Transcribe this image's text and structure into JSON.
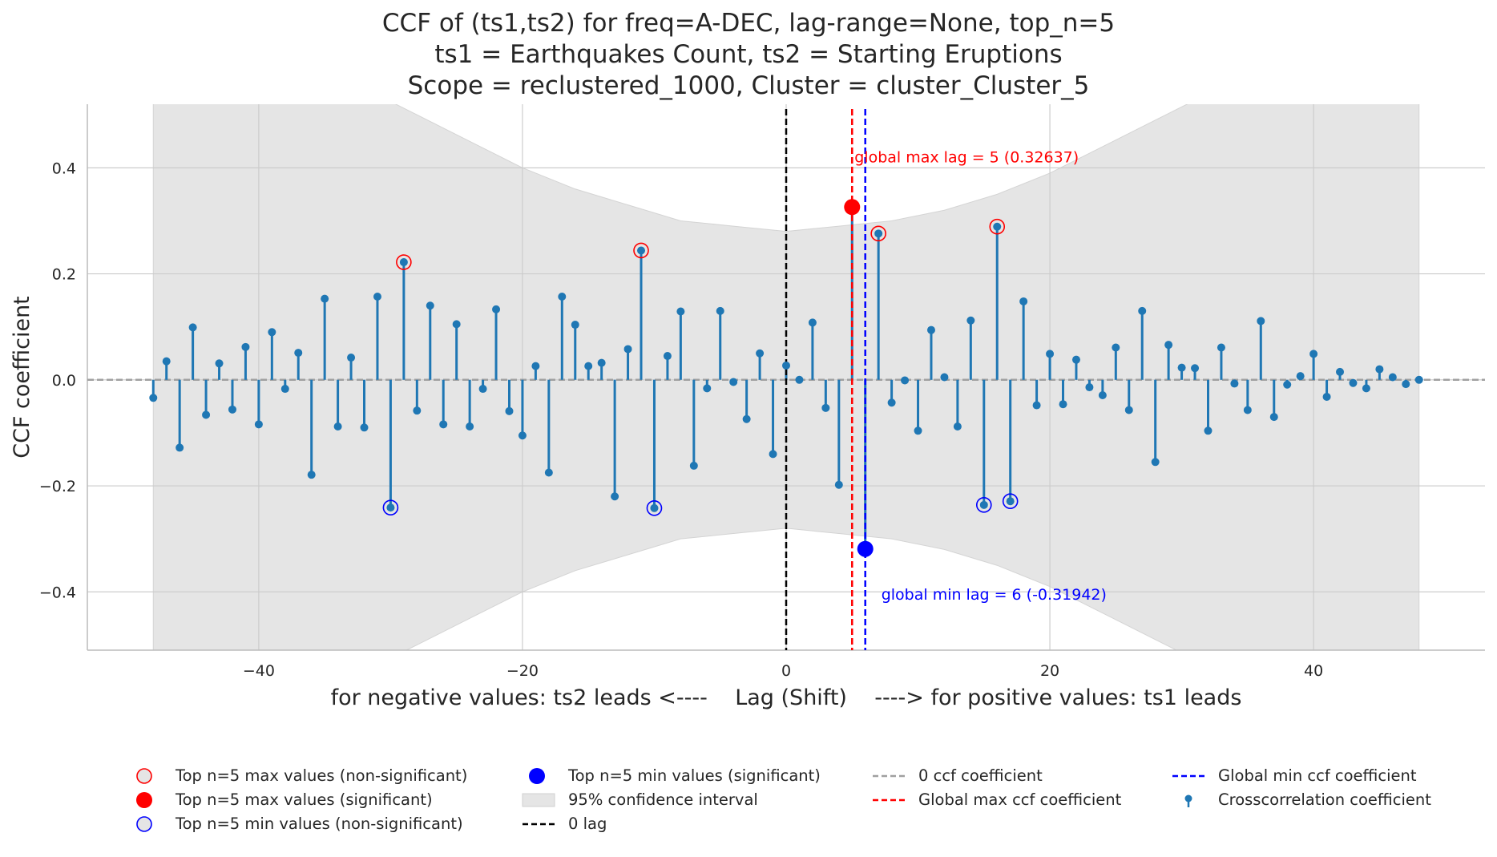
{
  "chart_data": {
    "type": "stem",
    "title_lines": [
      "CCF of (ts1,ts2) for freq=A-DEC, lag-range=None, top_n=5",
      "ts1 = Earthquakes Count, ts2 = Starting Eruptions",
      "Scope = reclustered_1000, Cluster = cluster_Cluster_5"
    ],
    "xlabel": "for negative values: ts2 leads <----    Lag (Shift)    ----> for positive values: ts1 leads",
    "ylabel": "CCF coefficient",
    "xlim": [
      -53,
      53
    ],
    "ylim": [
      -0.51,
      0.52
    ],
    "xticks": [
      -40,
      -20,
      0,
      20,
      40
    ],
    "xtick_labels": [
      "−40",
      "−20",
      "0",
      "20",
      "40"
    ],
    "yticks": [
      -0.4,
      -0.2,
      0.0,
      0.2,
      0.4
    ],
    "ytick_labels": [
      "−0.4",
      "−0.2",
      "0.0",
      "0.2",
      "0.4"
    ],
    "grid": true,
    "series": [
      {
        "name": "Crosscorrelation coefficient",
        "x": [
          -48,
          -47,
          -46,
          -45,
          -44,
          -43,
          -42,
          -41,
          -40,
          -39,
          -38,
          -37,
          -36,
          -35,
          -34,
          -33,
          -32,
          -31,
          -30,
          -29,
          -28,
          -27,
          -26,
          -25,
          -24,
          -23,
          -22,
          -21,
          -20,
          -19,
          -18,
          -17,
          -16,
          -15,
          -14,
          -13,
          -12,
          -11,
          -10,
          -9,
          -8,
          -7,
          -6,
          -5,
          -4,
          -3,
          -2,
          -1,
          0,
          1,
          2,
          3,
          4,
          5,
          6,
          7,
          8,
          9,
          10,
          11,
          12,
          13,
          14,
          15,
          16,
          17,
          18,
          19,
          20,
          21,
          22,
          23,
          24,
          25,
          26,
          27,
          28,
          29,
          30,
          31,
          32,
          33,
          34,
          35,
          36,
          37,
          38,
          39,
          40,
          41,
          42,
          43,
          44,
          45,
          46,
          47,
          48
        ],
        "y": [
          -0.034,
          0.035,
          -0.128,
          0.099,
          -0.066,
          0.031,
          -0.056,
          0.062,
          -0.084,
          0.09,
          -0.017,
          0.051,
          -0.179,
          0.153,
          -0.088,
          0.042,
          -0.09,
          0.157,
          -0.241,
          0.222,
          -0.058,
          0.14,
          -0.084,
          0.105,
          -0.088,
          -0.017,
          0.133,
          -0.059,
          -0.105,
          0.026,
          -0.175,
          0.157,
          0.104,
          0.026,
          0.032,
          -0.22,
          0.058,
          0.244,
          -0.242,
          0.045,
          0.129,
          -0.162,
          -0.016,
          0.13,
          -0.004,
          -0.074,
          0.05,
          -0.14,
          0.027,
          0.0,
          0.108,
          -0.053,
          -0.198,
          0.326,
          -0.319,
          0.276,
          -0.043,
          -0.001,
          -0.096,
          0.094,
          0.005,
          -0.088,
          0.112,
          -0.236,
          0.289,
          -0.229,
          0.148,
          -0.048,
          0.049,
          -0.046,
          0.038,
          -0.014,
          -0.029,
          0.061,
          -0.057,
          0.13,
          -0.155,
          0.066,
          0.023,
          0.022,
          -0.096,
          0.061,
          -0.007,
          -0.057,
          0.111,
          -0.07,
          -0.009,
          0.007,
          0.049,
          -0.032,
          0.015,
          -0.006,
          -0.016,
          0.02,
          0.005,
          -0.008,
          0.0
        ]
      }
    ],
    "confidence_interval": {
      "label": "95% confidence interval",
      "x": [
        -48,
        -44,
        -40,
        -36,
        -32,
        -28,
        -24,
        -20,
        -16,
        -12,
        -8,
        -4,
        0,
        4,
        8,
        12,
        16,
        20,
        24,
        28,
        32,
        36,
        40,
        44,
        48
      ],
      "upper": [
        0.74,
        0.7,
        0.65,
        0.6,
        0.55,
        0.5,
        0.45,
        0.4,
        0.36,
        0.33,
        0.3,
        0.29,
        0.28,
        0.29,
        0.3,
        0.32,
        0.35,
        0.39,
        0.44,
        0.49,
        0.54,
        0.59,
        0.64,
        0.69,
        0.74
      ]
    },
    "top_max_nonsignificant": {
      "label": "Top n=5 max values (non-significant)",
      "x": [
        -29,
        -11,
        7,
        16
      ]
    },
    "top_max_significant": {
      "label": "Top n=5 max values (significant)",
      "x": [
        5
      ]
    },
    "top_min_nonsignificant": {
      "label": "Top n=5 min values (non-significant)",
      "x": [
        -30,
        -10,
        15,
        17
      ]
    },
    "top_min_significant": {
      "label": "Top n=5 min values (significant)",
      "x": [
        6
      ]
    },
    "zero_lag_label": "0 lag",
    "zero_ccf_label": "0 ccf coefficient",
    "global_max": {
      "lag": 5,
      "label": "Global max ccf coefficient",
      "annotation": "global max lag = 5 (0.32637)"
    },
    "global_min": {
      "lag": 6,
      "label": "Global min ccf coefficient",
      "annotation": "global min lag = 6 (-0.31942)"
    },
    "legend_placement": "bottom, below axes, 4 columns",
    "colors": {
      "stem": "#1f77b4",
      "max": "#ff0000",
      "min": "#0000ff",
      "zero_lag": "#000000",
      "zero_ccf": "#a0a0a0",
      "ci_fill": "#e5e5e5",
      "grid": "#cccccc"
    }
  }
}
